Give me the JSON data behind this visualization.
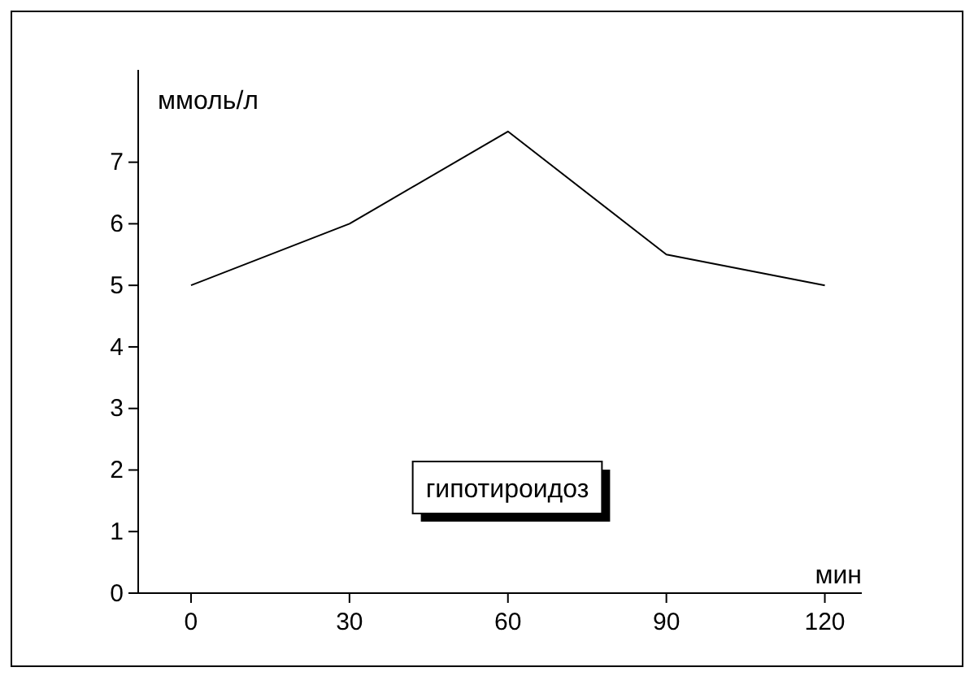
{
  "chart_data": {
    "type": "line",
    "xlabel": "мин",
    "ylabel": "ммоль/л",
    "annotations": [
      "гипотироидоз"
    ],
    "x": [
      0,
      30,
      60,
      90,
      120
    ],
    "series": [
      {
        "color": "#000000",
        "values": [
          5,
          6,
          7.5,
          5.5,
          5
        ]
      }
    ],
    "xlim": [
      -10,
      127
    ],
    "xticks": [
      0,
      30,
      60,
      90,
      120
    ],
    "ylim": [
      0,
      8.5
    ],
    "yticks": [
      0,
      1,
      2,
      3,
      4,
      5,
      6,
      7
    ],
    "line_style": "solid"
  }
}
